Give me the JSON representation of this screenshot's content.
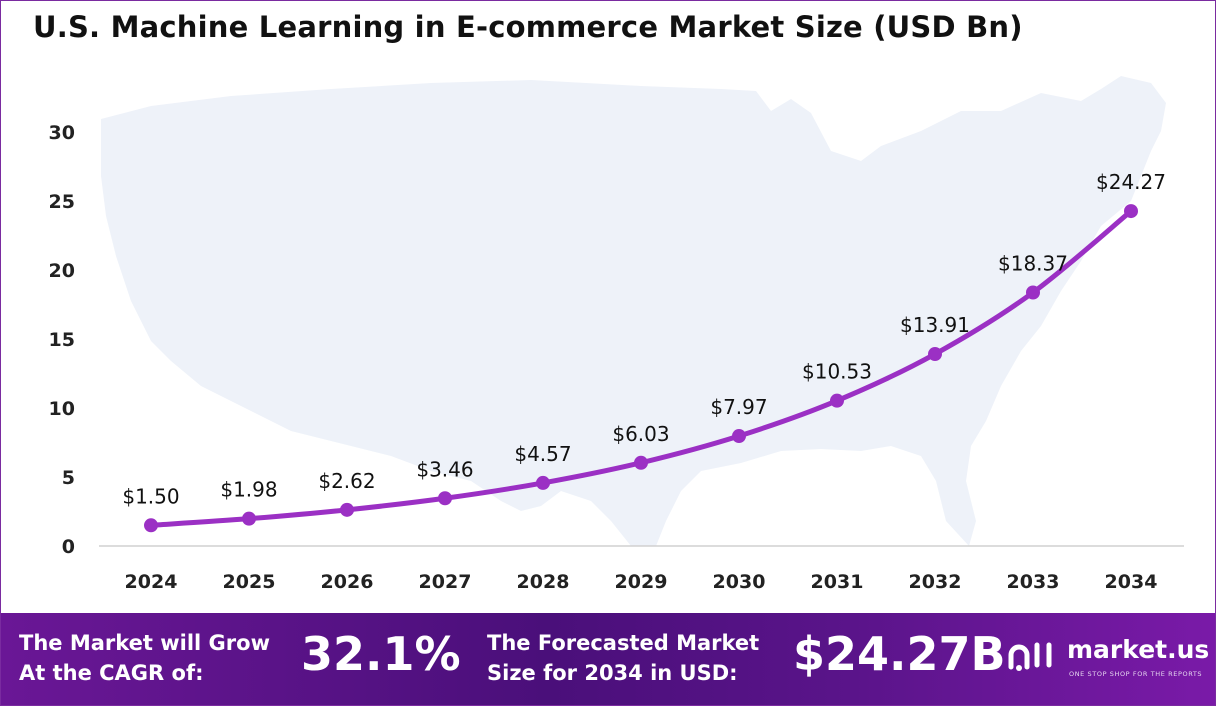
{
  "title": "U.S. Machine Learning in E-commerce Market Size (USD Bn)",
  "colors": {
    "line": "#9b30c4",
    "marker": "#9b30c4",
    "map": "#eef2f9",
    "axis_text": "#222222",
    "footer": "#5a148a",
    "border": "#7a2ba0"
  },
  "chart_data": {
    "type": "line",
    "title": "U.S. Machine Learning in E-commerce Market Size (USD Bn)",
    "xlabel": "",
    "ylabel": "",
    "categories": [
      "2024",
      "2025",
      "2026",
      "2027",
      "2028",
      "2029",
      "2030",
      "2031",
      "2032",
      "2033",
      "2034"
    ],
    "values": [
      1.5,
      1.98,
      2.62,
      3.46,
      4.57,
      6.03,
      7.97,
      10.53,
      13.91,
      18.37,
      24.27
    ],
    "data_labels": [
      "$1.50",
      "$1.98",
      "$2.62",
      "$3.46",
      "$4.57",
      "$6.03",
      "$7.97",
      "$10.53",
      "$13.91",
      "$18.37",
      "$24.27"
    ],
    "ylim": [
      0,
      30
    ],
    "yticks": [
      "0",
      "5",
      "10",
      "15",
      "20",
      "25",
      "30"
    ],
    "grid": false,
    "legend": "none"
  },
  "footer": {
    "cagr_label_line1": "The Market will Grow",
    "cagr_label_line2": "At the CAGR of:",
    "cagr_value": "32.1%",
    "forecast_label_line1": "The Forecasted Market",
    "forecast_label_line2": "Size for 2034 in USD:",
    "forecast_value": "$24.27B",
    "brand_name": "market.us",
    "brand_tagline": "ONE STOP SHOP FOR THE REPORTS",
    "brand_icon": "market-us-logo-icon"
  }
}
